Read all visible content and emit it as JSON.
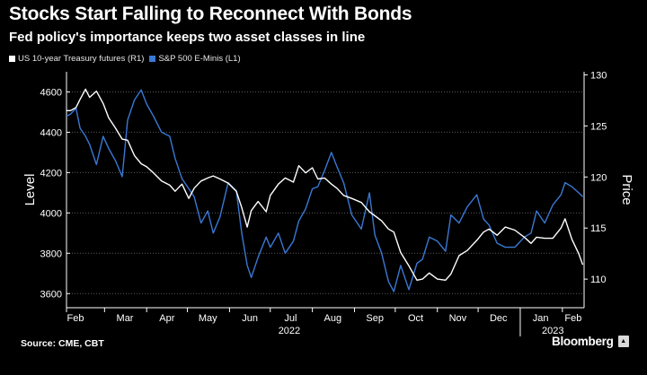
{
  "header": {
    "title": "Stocks Start Falling to Reconnect With Bonds",
    "subtitle": "Fed policy's importance keeps two asset classes in line"
  },
  "footer": {
    "source": "Source: CME, CBT",
    "brand": "Bloomberg"
  },
  "colors": {
    "background": "#000000",
    "treasury": "#ffffff",
    "sp500": "#3a78d4",
    "grid": "#5a5a5a"
  },
  "chart_data": {
    "type": "line",
    "title": "Stocks Start Falling to Reconnect With Bonds",
    "subtitle": "Fed policy's importance keeps two asset classes in line",
    "legend_position": "top-left",
    "grid": true,
    "x_ticks": [
      "Feb",
      "Mar",
      "Apr",
      "May",
      "Jun",
      "Jul",
      "Aug",
      "Sep",
      "Oct",
      "Nov",
      "Dec",
      "Jan",
      "Feb"
    ],
    "x_year_labels": [
      "2022",
      "2023"
    ],
    "left_axis": {
      "label": "Level",
      "ticks": [
        3600,
        3800,
        4000,
        4200,
        4400,
        4600
      ],
      "ylim": [
        3530,
        4700
      ]
    },
    "right_axis": {
      "label": "Price",
      "ticks": [
        110,
        115,
        120,
        125,
        130
      ],
      "ylim": [
        107.2,
        130.3
      ]
    },
    "xlim": [
      "2022-02-01",
      "2023-02-17"
    ],
    "series": [
      {
        "name": "US 10-year Treasury futures (R1)",
        "axis": "right",
        "x": [
          "2022-02-01",
          "2022-02-04",
          "2022-02-08",
          "2022-02-11",
          "2022-02-15",
          "2022-02-18",
          "2022-02-23",
          "2022-02-28",
          "2022-03-04",
          "2022-03-09",
          "2022-03-14",
          "2022-03-18",
          "2022-03-23",
          "2022-03-28",
          "2022-04-01",
          "2022-04-06",
          "2022-04-12",
          "2022-04-18",
          "2022-04-22",
          "2022-04-27",
          "2022-05-02",
          "2022-05-06",
          "2022-05-11",
          "2022-05-16",
          "2022-05-20",
          "2022-05-25",
          "2022-05-31",
          "2022-06-06",
          "2022-06-10",
          "2022-06-14",
          "2022-06-17",
          "2022-06-22",
          "2022-06-28",
          "2022-07-01",
          "2022-07-07",
          "2022-07-12",
          "2022-07-18",
          "2022-07-22",
          "2022-07-27",
          "2022-08-01",
          "2022-08-05",
          "2022-08-10",
          "2022-08-15",
          "2022-08-19",
          "2022-08-24",
          "2022-08-30",
          "2022-09-06",
          "2022-09-12",
          "2022-09-16",
          "2022-09-21",
          "2022-09-26",
          "2022-09-30",
          "2022-10-05",
          "2022-10-11",
          "2022-10-17",
          "2022-10-21",
          "2022-10-26",
          "2022-11-01",
          "2022-11-07",
          "2022-11-11",
          "2022-11-17",
          "2022-11-23",
          "2022-11-30",
          "2022-12-05",
          "2022-12-09",
          "2022-12-15",
          "2022-12-21",
          "2022-12-28",
          "2023-01-04",
          "2023-01-09",
          "2023-01-13",
          "2023-01-19",
          "2023-01-25",
          "2023-01-31",
          "2023-02-03",
          "2023-02-08",
          "2023-02-13",
          "2023-02-16"
        ],
        "y": [
          126.5,
          126.5,
          126.8,
          127.6,
          128.6,
          127.8,
          128.4,
          127.2,
          125.8,
          124.8,
          123.7,
          123.6,
          122.1,
          121.3,
          121.0,
          120.4,
          119.6,
          119.2,
          118.6,
          119.3,
          117.9,
          118.9,
          119.6,
          119.9,
          120.1,
          119.8,
          119.4,
          118.6,
          117.0,
          115.1,
          116.7,
          117.6,
          116.6,
          118.2,
          119.3,
          119.9,
          119.5,
          121.1,
          120.4,
          120.9,
          119.8,
          119.9,
          119.3,
          118.9,
          118.2,
          117.9,
          117.5,
          116.6,
          116.2,
          115.7,
          114.9,
          114.6,
          112.6,
          111.3,
          109.9,
          110.0,
          110.6,
          110.0,
          109.9,
          110.5,
          112.3,
          112.8,
          113.8,
          114.6,
          114.9,
          114.3,
          115.1,
          114.8,
          114.1,
          113.5,
          114.1,
          114.0,
          114.0,
          115.0,
          115.9,
          113.9,
          112.5,
          111.4
        ]
      },
      {
        "name": "S&P 500 E-Minis (L1)",
        "axis": "left",
        "x": [
          "2022-02-01",
          "2022-02-04",
          "2022-02-08",
          "2022-02-11",
          "2022-02-15",
          "2022-02-18",
          "2022-02-23",
          "2022-02-28",
          "2022-03-04",
          "2022-03-09",
          "2022-03-14",
          "2022-03-18",
          "2022-03-23",
          "2022-03-28",
          "2022-04-01",
          "2022-04-06",
          "2022-04-12",
          "2022-04-18",
          "2022-04-22",
          "2022-04-27",
          "2022-05-02",
          "2022-05-06",
          "2022-05-11",
          "2022-05-16",
          "2022-05-20",
          "2022-05-25",
          "2022-05-31",
          "2022-06-06",
          "2022-06-10",
          "2022-06-14",
          "2022-06-17",
          "2022-06-22",
          "2022-06-28",
          "2022-07-01",
          "2022-07-07",
          "2022-07-12",
          "2022-07-18",
          "2022-07-22",
          "2022-07-27",
          "2022-08-01",
          "2022-08-05",
          "2022-08-10",
          "2022-08-15",
          "2022-08-19",
          "2022-08-24",
          "2022-08-30",
          "2022-09-06",
          "2022-09-12",
          "2022-09-16",
          "2022-09-21",
          "2022-09-26",
          "2022-09-30",
          "2022-10-05",
          "2022-10-11",
          "2022-10-17",
          "2022-10-21",
          "2022-10-26",
          "2022-11-01",
          "2022-11-07",
          "2022-11-11",
          "2022-11-17",
          "2022-11-23",
          "2022-11-30",
          "2022-12-05",
          "2022-12-09",
          "2022-12-15",
          "2022-12-21",
          "2022-12-28",
          "2023-01-04",
          "2023-01-09",
          "2023-01-13",
          "2023-01-19",
          "2023-01-25",
          "2023-01-31",
          "2023-02-03",
          "2023-02-08",
          "2023-02-13",
          "2023-02-16"
        ],
        "y": [
          4480,
          4490,
          4520,
          4420,
          4380,
          4340,
          4240,
          4380,
          4320,
          4260,
          4180,
          4460,
          4560,
          4610,
          4540,
          4480,
          4400,
          4380,
          4270,
          4170,
          4120,
          4080,
          3950,
          4010,
          3900,
          3980,
          4150,
          4110,
          3900,
          3740,
          3680,
          3780,
          3880,
          3830,
          3900,
          3800,
          3860,
          3960,
          4020,
          4120,
          4130,
          4210,
          4300,
          4230,
          4150,
          3990,
          3920,
          4100,
          3890,
          3800,
          3660,
          3610,
          3740,
          3620,
          3750,
          3770,
          3880,
          3860,
          3810,
          3990,
          3950,
          4030,
          4090,
          3970,
          3940,
          3850,
          3830,
          3830,
          3880,
          3900,
          4010,
          3950,
          4040,
          4090,
          4150,
          4130,
          4100,
          4080
        ]
      }
    ]
  }
}
